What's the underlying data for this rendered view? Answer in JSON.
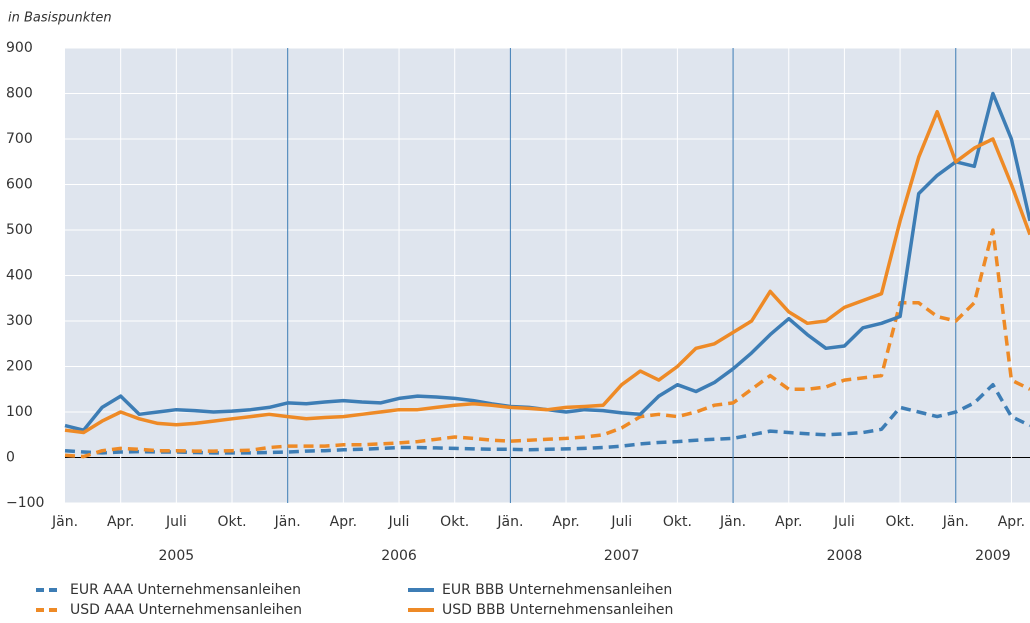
{
  "chart_data": {
    "type": "line",
    "y_axis_label": "in Basispunkten",
    "x": [
      "2005-01",
      "2005-02",
      "2005-03",
      "2005-04",
      "2005-05",
      "2005-06",
      "2005-07",
      "2005-08",
      "2005-09",
      "2005-10",
      "2005-11",
      "2005-12",
      "2006-01",
      "2006-02",
      "2006-03",
      "2006-04",
      "2006-05",
      "2006-06",
      "2006-07",
      "2006-08",
      "2006-09",
      "2006-10",
      "2006-11",
      "2006-12",
      "2007-01",
      "2007-02",
      "2007-03",
      "2007-04",
      "2007-05",
      "2007-06",
      "2007-07",
      "2007-08",
      "2007-09",
      "2007-10",
      "2007-11",
      "2007-12",
      "2008-01",
      "2008-02",
      "2008-03",
      "2008-04",
      "2008-05",
      "2008-06",
      "2008-07",
      "2008-08",
      "2008-09",
      "2008-10",
      "2008-11",
      "2008-12",
      "2009-01",
      "2009-02",
      "2009-03",
      "2009-04",
      "2009-05"
    ],
    "series": [
      {
        "name": "EUR AAA Unternehmensanleihen",
        "color": "#3d7db5",
        "dash": true,
        "values": [
          15,
          12,
          10,
          12,
          13,
          12,
          12,
          11,
          10,
          10,
          10,
          11,
          12,
          14,
          15,
          17,
          18,
          20,
          22,
          22,
          21,
          20,
          19,
          18,
          18,
          17,
          18,
          19,
          20,
          22,
          25,
          30,
          33,
          35,
          38,
          40,
          42,
          50,
          58,
          55,
          52,
          50,
          52,
          55,
          62,
          110,
          100,
          90,
          100,
          120,
          160,
          90,
          70
        ]
      },
      {
        "name": "USD AAA Unternehmensanleihen",
        "color": "#ee8a26",
        "dash": true,
        "values": [
          5,
          2,
          15,
          20,
          18,
          15,
          15,
          14,
          14,
          15,
          16,
          22,
          25,
          25,
          25,
          28,
          28,
          30,
          32,
          35,
          40,
          45,
          42,
          38,
          36,
          38,
          40,
          42,
          45,
          50,
          65,
          90,
          95,
          90,
          100,
          115,
          120,
          150,
          180,
          150,
          150,
          155,
          170,
          175,
          180,
          340,
          340,
          310,
          300,
          340,
          500,
          170,
          150
        ]
      },
      {
        "name": "EUR BBB Unternehmensanleihen",
        "color": "#3d7db5",
        "dash": false,
        "values": [
          70,
          60,
          110,
          135,
          95,
          100,
          105,
          103,
          100,
          102,
          105,
          110,
          120,
          118,
          122,
          125,
          122,
          120,
          130,
          135,
          133,
          130,
          125,
          118,
          112,
          110,
          105,
          100,
          105,
          103,
          98,
          95,
          135,
          160,
          145,
          165,
          195,
          230,
          270,
          305,
          270,
          240,
          245,
          285,
          295,
          310,
          580,
          620,
          650,
          640,
          800,
          700,
          520
        ]
      },
      {
        "name": "USD BBB Unternehmensanleihen",
        "color": "#ee8a26",
        "dash": false,
        "values": [
          60,
          55,
          80,
          100,
          85,
          75,
          72,
          75,
          80,
          85,
          90,
          95,
          90,
          85,
          88,
          90,
          95,
          100,
          105,
          105,
          110,
          115,
          118,
          115,
          110,
          108,
          105,
          110,
          112,
          115,
          160,
          190,
          170,
          200,
          240,
          250,
          275,
          300,
          365,
          320,
          295,
          300,
          330,
          345,
          360,
          520,
          660,
          760,
          650,
          680,
          700,
          600,
          490
        ]
      }
    ],
    "xlim": [
      "2005-01",
      "2009-05"
    ],
    "xticks": [
      {
        "value": "2005-01",
        "label": "Jän."
      },
      {
        "value": "2005-04",
        "label": "Apr."
      },
      {
        "value": "2005-07",
        "label": "Juli"
      },
      {
        "value": "2005-10",
        "label": "Okt."
      },
      {
        "value": "2006-01",
        "label": "Jän."
      },
      {
        "value": "2006-04",
        "label": "Apr."
      },
      {
        "value": "2006-07",
        "label": "Juli"
      },
      {
        "value": "2006-10",
        "label": "Okt."
      },
      {
        "value": "2007-01",
        "label": "Jän."
      },
      {
        "value": "2007-04",
        "label": "Apr."
      },
      {
        "value": "2007-07",
        "label": "Juli"
      },
      {
        "value": "2007-10",
        "label": "Okt."
      },
      {
        "value": "2008-01",
        "label": "Jän."
      },
      {
        "value": "2008-04",
        "label": "Apr."
      },
      {
        "value": "2008-07",
        "label": "Juli"
      },
      {
        "value": "2008-10",
        "label": "Okt."
      },
      {
        "value": "2009-01",
        "label": "Jän."
      },
      {
        "value": "2009-04",
        "label": "Apr."
      }
    ],
    "years": [
      2005,
      2006,
      2007,
      2008,
      2009
    ],
    "ylim": [
      -100,
      900
    ],
    "yticks": [
      {
        "value": -100,
        "label": "−100"
      },
      0,
      100,
      200,
      300,
      400,
      500,
      600,
      700,
      800,
      900
    ],
    "grid": true,
    "background": "#dfe5ee",
    "separator_color": "#3d7db5"
  }
}
